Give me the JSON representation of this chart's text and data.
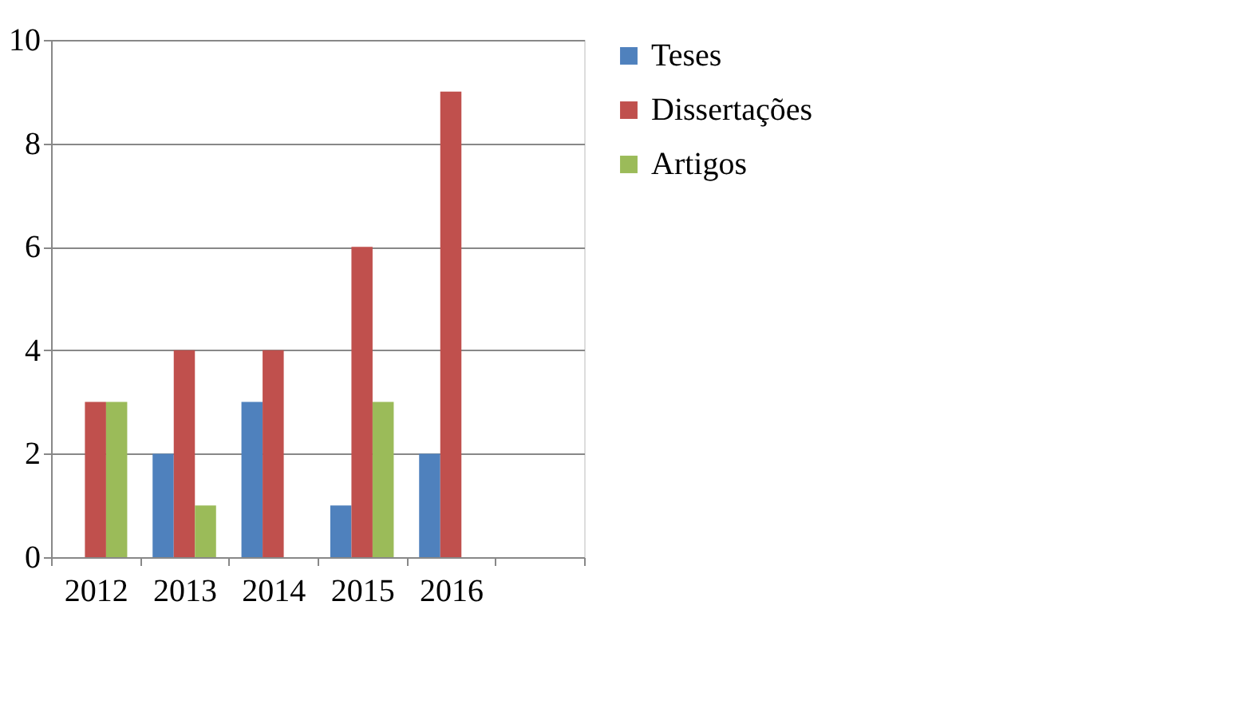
{
  "chart_data": {
    "type": "bar",
    "categories": [
      "2012",
      "2013",
      "2014",
      "2015",
      "2016",
      null
    ],
    "series": [
      {
        "name": "Teses",
        "color": "#4f81bd",
        "values": [
          0,
          2,
          3,
          1,
          2,
          null
        ]
      },
      {
        "name": "Dissertações",
        "color": "#c0504d",
        "values": [
          3,
          4,
          4,
          6,
          9,
          null
        ]
      },
      {
        "name": "Artigos",
        "color": "#9bbb59",
        "values": [
          3,
          1,
          0,
          3,
          0,
          null
        ]
      }
    ],
    "ylim": [
      0,
      10
    ],
    "yticks": [
      0,
      2,
      4,
      6,
      8,
      10
    ],
    "grid": "y",
    "legend": "right"
  }
}
